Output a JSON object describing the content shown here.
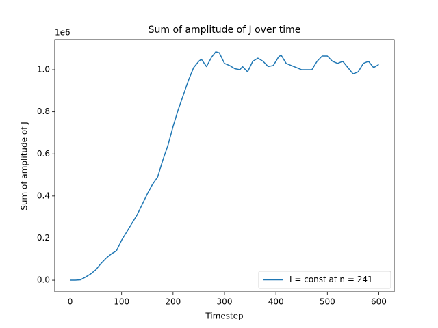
{
  "chart_data": {
    "type": "line",
    "title": "Sum of amplitude of J over time",
    "x_label": "Timestep",
    "y_label": "Sum of amplitude of J",
    "y_offset_label": "1e6",
    "xlim": [
      -30,
      630
    ],
    "ylim": [
      -0.055,
      1.143
    ],
    "xticks": [
      0,
      100,
      200,
      300,
      400,
      500,
      600
    ],
    "yticks": [
      {
        "value": 0,
        "label": "0.0"
      },
      {
        "value": 0.2,
        "label": "0.2"
      },
      {
        "value": 0.4,
        "label": "0.4"
      },
      {
        "value": 0.6,
        "label": "0.6"
      },
      {
        "value": 0.8,
        "label": "0.8"
      },
      {
        "value": 1,
        "label": "1.0"
      }
    ],
    "legend_position": "lower right",
    "x": [
      0,
      10,
      20,
      30,
      40,
      50,
      60,
      70,
      80,
      90,
      100,
      110,
      120,
      130,
      140,
      150,
      160,
      170,
      180,
      190,
      200,
      210,
      220,
      230,
      240,
      250,
      255,
      265,
      275,
      283,
      290,
      300,
      310,
      320,
      330,
      335,
      345,
      355,
      365,
      375,
      385,
      395,
      405,
      410,
      420,
      430,
      440,
      450,
      460,
      470,
      480,
      490,
      500,
      510,
      520,
      530,
      540,
      550,
      560,
      570,
      580,
      590,
      600
    ],
    "series": [
      {
        "name": "I = const at n = 241",
        "color": "#1f77b4",
        "values": [
          0,
          0,
          0.002,
          0.015,
          0.03,
          0.05,
          0.08,
          0.105,
          0.125,
          0.14,
          0.19,
          0.23,
          0.27,
          0.31,
          0.36,
          0.41,
          0.455,
          0.49,
          0.57,
          0.64,
          0.73,
          0.81,
          0.88,
          0.95,
          1.01,
          1.04,
          1.05,
          1.015,
          1.06,
          1.085,
          1.08,
          1.03,
          1.02,
          1.005,
          1.0,
          1.015,
          0.99,
          1.04,
          1.055,
          1.04,
          1.015,
          1.02,
          1.06,
          1.07,
          1.03,
          1.02,
          1.01,
          1.0,
          1.0,
          1.0,
          1.04,
          1.065,
          1.065,
          1.04,
          1.03,
          1.04,
          1.01,
          0.98,
          0.99,
          1.03,
          1.04,
          1.01,
          1.025
        ]
      }
    ]
  }
}
